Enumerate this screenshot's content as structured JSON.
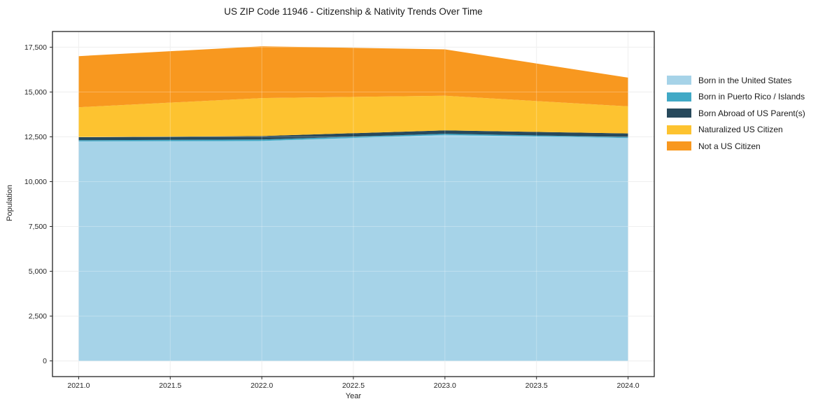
{
  "chart": {
    "title": "US ZIP Code 11946 - Citizenship & Nativity Trends Over Time",
    "xlabel": "Year",
    "ylabel": "Population"
  },
  "chart_data": {
    "type": "area",
    "stacked": true,
    "title": "US ZIP Code 11946 - Citizenship & Nativity Trends Over Time",
    "xlabel": "Year",
    "ylabel": "Population",
    "x": [
      2021,
      2022,
      2023,
      2024
    ],
    "series": [
      {
        "name": "Born in the United States",
        "color": "#a6d3e8",
        "values": [
          12250,
          12270,
          12600,
          12430
        ]
      },
      {
        "name": "Born in Puerto Rico / Islands",
        "color": "#41a9c6",
        "values": [
          60,
          80,
          70,
          60
        ]
      },
      {
        "name": "Born Abroad of US Parent(s)",
        "color": "#27495c",
        "values": [
          170,
          190,
          190,
          200
        ]
      },
      {
        "name": "Naturalized US Citizen",
        "color": "#fdc330",
        "values": [
          1670,
          2120,
          1930,
          1510
        ]
      },
      {
        "name": "Not a US Citizen",
        "color": "#f8981f",
        "values": [
          2850,
          2890,
          2590,
          1600
        ]
      }
    ],
    "stack_totals": [
      17000,
      17550,
      17380,
      15800
    ],
    "xlim": [
      2020.857,
      2024.143
    ],
    "ylim": [
      -875,
      18375
    ],
    "xticks": {
      "values": [
        2021.0,
        2021.5,
        2022.0,
        2022.5,
        2023.0,
        2023.5,
        2024.0
      ],
      "labels": [
        "2021.0",
        "2021.5",
        "2022.0",
        "2022.5",
        "2023.0",
        "2023.5",
        "2024.0"
      ]
    },
    "yticks": {
      "values": [
        0,
        2500,
        5000,
        7500,
        10000,
        12500,
        15000,
        17500
      ],
      "labels": [
        "0",
        "2,500",
        "5,000",
        "7,500",
        "10,000",
        "12,500",
        "15,000",
        "17,500"
      ]
    },
    "grid": true,
    "legend_position": "right-outside",
    "frame_color": "#222222",
    "grid_color": "#e9e9e9",
    "tick_color": "#262626"
  }
}
